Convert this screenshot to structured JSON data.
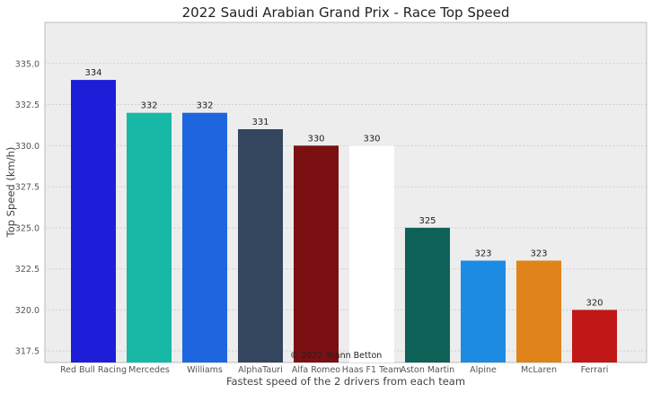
{
  "chart_data": {
    "type": "bar",
    "title": "2022 Saudi Arabian Grand Prix - Race Top Speed",
    "xlabel": "Fastest speed of the 2 drivers from each team",
    "ylabel": "Top Speed (km/h)",
    "ylim": [
      316.8,
      337.5
    ],
    "yticks": [
      "317.5",
      "320.0",
      "322.5",
      "325.0",
      "327.5",
      "330.0",
      "332.5",
      "335.0"
    ],
    "categories": [
      "Red Bull Racing",
      "Mercedes",
      "Williams",
      "AlphaTauri",
      "Alfa Romeo",
      "Haas F1 Team",
      "Aston Martin",
      "Alpine",
      "McLaren",
      "Ferrari"
    ],
    "values": [
      334,
      332,
      332,
      331,
      330,
      330,
      325,
      323,
      323,
      320
    ],
    "colors": [
      "#1e1ed8",
      "#17b8a6",
      "#1e66e0",
      "#34455e",
      "#7b1012",
      "#ffffff",
      "#0e6156",
      "#1e8be3",
      "#e0831a",
      "#c21717"
    ],
    "grid": true,
    "background": "#ededed",
    "annotation": "© 2022 Yoann Betton"
  }
}
